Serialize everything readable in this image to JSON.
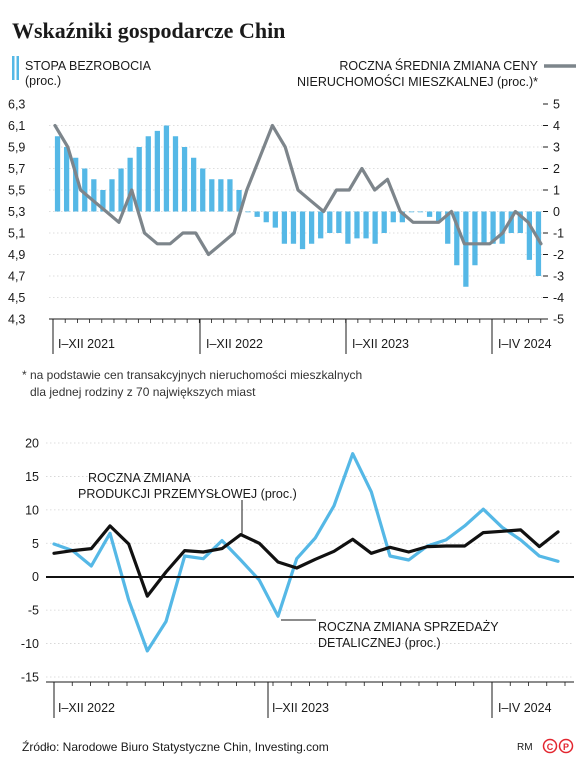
{
  "title": "Wskaźniki gospodarcze Chin",
  "footnote": {
    "line1": "* na podstawie cen transakcyjnych nieruchomości mieszkalnych",
    "line2": "dla jednej rodziny z 70 największych miast"
  },
  "source": "Źródło: Narodowe Biuro Statystyczne Chin, Investing.com",
  "credit": "RM",
  "colors": {
    "bars": "#55b8e6",
    "grey_line": "#7d858b",
    "blue_line": "#55b8e6",
    "black_line": "#111111",
    "logo": "#e3262f"
  },
  "chart_data": [
    {
      "type": "bar+line",
      "legend": {
        "bars": {
          "line1": "STOPA BEZROBOCIA",
          "line2": "(proc.)"
        },
        "line": {
          "line1": "ROCZNA ŚREDNIA ZMIANA CENY",
          "line2": "NIERUCHOMOŚCI MIESZKALNEJ (proc.)*"
        }
      },
      "left_axis": {
        "ylim": [
          4.3,
          6.3
        ],
        "ticks": [
          "6,3",
          "6,1",
          "5,9",
          "5,7",
          "5,5",
          "5,3",
          "5,1",
          "4,9",
          "4,7",
          "4,5",
          "4,3"
        ],
        "baseline": 5.3
      },
      "right_axis": {
        "ylim": [
          -5,
          5
        ],
        "ticks": [
          "5",
          "4",
          "3",
          "2",
          "1",
          "0",
          "-1",
          "-2",
          "-3",
          "-4",
          "-5"
        ]
      },
      "period_labels": [
        "I–XII 2021",
        "I–XII 2022",
        "I–XII 2023",
        "I–IV 2024"
      ],
      "series": [
        {
          "kind": "bars",
          "values": [
            6.0,
            5.9,
            5.8,
            5.7,
            5.6,
            5.5,
            5.6,
            5.7,
            5.8,
            5.9,
            6.0,
            6.05,
            6.1,
            6.0,
            5.9,
            5.8,
            5.7,
            5.6,
            5.6,
            5.6,
            5.5,
            5.3,
            5.25,
            5.2,
            5.15,
            5.0,
            5.0,
            4.95,
            5.0,
            5.05,
            5.1,
            5.1,
            5.0,
            5.05,
            5.05,
            5.0,
            5.1,
            5.2,
            5.2,
            5.3,
            5.3,
            5.25,
            5.2,
            5.0,
            4.8,
            4.6,
            4.8,
            5.0,
            5.0,
            5.0,
            5.1,
            5.1,
            4.85,
            4.7
          ]
        },
        {
          "kind": "line",
          "values": [
            4.0,
            3.0,
            1.0,
            0.5,
            0.0,
            -0.5,
            1.0,
            -1.0,
            -1.5,
            -1.5,
            -1.0,
            -1.0,
            -2.0,
            -1.5,
            -1.0,
            1.0,
            2.5,
            4.0,
            3.0,
            1.0,
            0.5,
            0.0,
            1.0,
            1.0,
            2.0,
            1.0,
            1.5,
            0.0,
            -0.5,
            -0.5,
            -0.5,
            0.0,
            -1.5,
            -1.5,
            -1.5,
            -1.0,
            0.0,
            -0.5,
            -1.5
          ]
        }
      ]
    },
    {
      "type": "line",
      "yticks": [
        "20",
        "15",
        "10",
        "5",
        "0",
        "-5",
        "-10",
        "-15"
      ],
      "ylim": [
        -15,
        20
      ],
      "period_labels": [
        "I–XII 2022",
        "I–XII 2023",
        "I–IV 2024"
      ],
      "annotations": [
        {
          "line1": "ROCZNA ZMIANA",
          "line2": "PRODUKCJI PRZEMYSŁOWEJ (proc.)"
        },
        {
          "line1": "ROCZNA ZMIANA SPRZEDAŻY",
          "line2": "DETALICZNEJ (proc.)"
        }
      ],
      "series": [
        {
          "kind": "industrial_production",
          "values": [
            3.5,
            3.9,
            4.2,
            7.6,
            4.9,
            -2.9,
            0.7,
            3.9,
            3.7,
            4.2,
            6.3,
            5.0,
            2.2,
            1.3,
            2.6,
            3.8,
            5.6,
            3.5,
            4.4,
            3.7,
            4.5,
            4.6,
            4.6,
            6.6,
            6.8,
            7.0,
            4.5,
            6.7
          ]
        },
        {
          "kind": "retail_sales",
          "values": [
            4.9,
            3.9,
            1.6,
            6.5,
            -3.5,
            -11.1,
            -6.7,
            3.1,
            2.7,
            5.4,
            2.5,
            -0.5,
            -5.9,
            2.7,
            5.8,
            10.6,
            18.4,
            12.7,
            3.1,
            2.5,
            4.6,
            5.5,
            7.6,
            10.1,
            7.4,
            5.5,
            3.1,
            2.3
          ]
        }
      ]
    }
  ]
}
